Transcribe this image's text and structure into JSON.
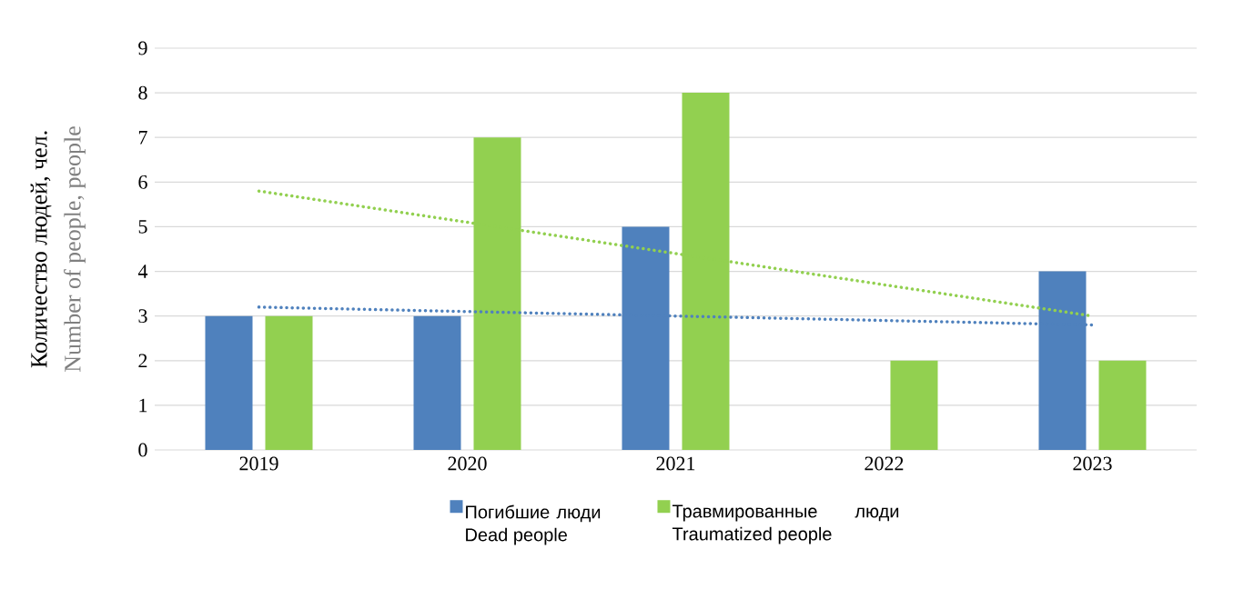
{
  "chart_data": {
    "type": "bar",
    "ylabel": "Количество людей, чел.",
    "annotations": [
      "Number of people, people"
    ],
    "categories": [
      "2019",
      "2020",
      "2021",
      "2022",
      "2023"
    ],
    "series": [
      {
        "name": "Погибшие люди Dead people",
        "color": "#4f81bd",
        "values": [
          3,
          3,
          5,
          0,
          4
        ]
      },
      {
        "name": "Травмированные люди Traumatized people",
        "color": "#92d050",
        "values": [
          3,
          7,
          8,
          2,
          2
        ]
      },
      {
        "type": "line",
        "color": "#4f81bd",
        "line_style": "dotted",
        "values": [
          3.2,
          3.1,
          3.0,
          2.9,
          2.8
        ]
      },
      {
        "type": "line",
        "color": "#92d050",
        "line_style": "dotted",
        "values": [
          5.8,
          5.1,
          4.4,
          3.7,
          3.0
        ]
      }
    ],
    "ylim": [
      0,
      9
    ],
    "yticks": [
      0,
      1,
      2,
      3,
      4,
      5,
      6,
      7,
      8,
      9
    ],
    "grid": "y",
    "legend": "bottom"
  }
}
